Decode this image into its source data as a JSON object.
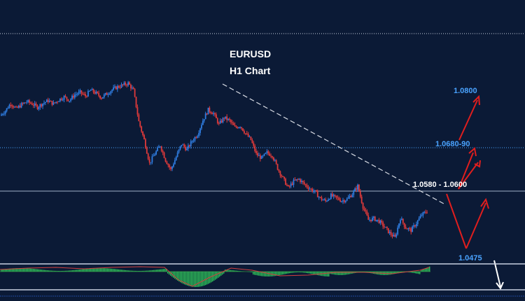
{
  "chart_data": {
    "type": "line",
    "title": "EURUSD",
    "subtitle": "H1 Chart",
    "series": [
      {
        "values": [
          1.0755,
          1.0766,
          1.0782,
          1.077,
          1.0779,
          1.0786,
          1.0781,
          1.0774,
          1.0782,
          1.0788,
          1.0781,
          1.079,
          1.0796,
          1.0789,
          1.0801,
          1.0806,
          1.0798,
          1.0811,
          1.0804,
          1.0795,
          1.0803,
          1.0812,
          1.0818,
          1.0822,
          1.0826,
          1.081,
          1.0742,
          1.0702,
          1.0651,
          1.0672,
          1.069,
          1.0658,
          1.0637,
          1.0665,
          1.0693,
          1.0681,
          1.07,
          1.0714,
          1.0745,
          1.0768,
          1.076,
          1.0736,
          1.0751,
          1.0744,
          1.0729,
          1.0733,
          1.0716,
          1.0702,
          1.0671,
          1.0662,
          1.0674,
          1.0668,
          1.064,
          1.0618,
          1.0597,
          1.0611,
          1.0616,
          1.0605,
          1.0596,
          1.0588,
          1.0574,
          1.0568,
          1.058,
          1.0575,
          1.0569,
          1.0572,
          1.0584,
          1.0601,
          1.0556,
          1.0527,
          1.053,
          1.0524,
          1.0512,
          1.0498,
          1.0488,
          1.0531,
          1.051,
          1.0504,
          1.052,
          1.0538,
          1.0546
        ]
      }
    ],
    "levels": [
      {
        "label": "1.0800",
        "value": 1.08
      },
      {
        "label": "1.0680-90",
        "value": 1.0685
      },
      {
        "label": "1.0580 - 1.0600",
        "value": 1.059
      },
      {
        "label": "1.0475",
        "value": 1.0475
      }
    ]
  }
}
